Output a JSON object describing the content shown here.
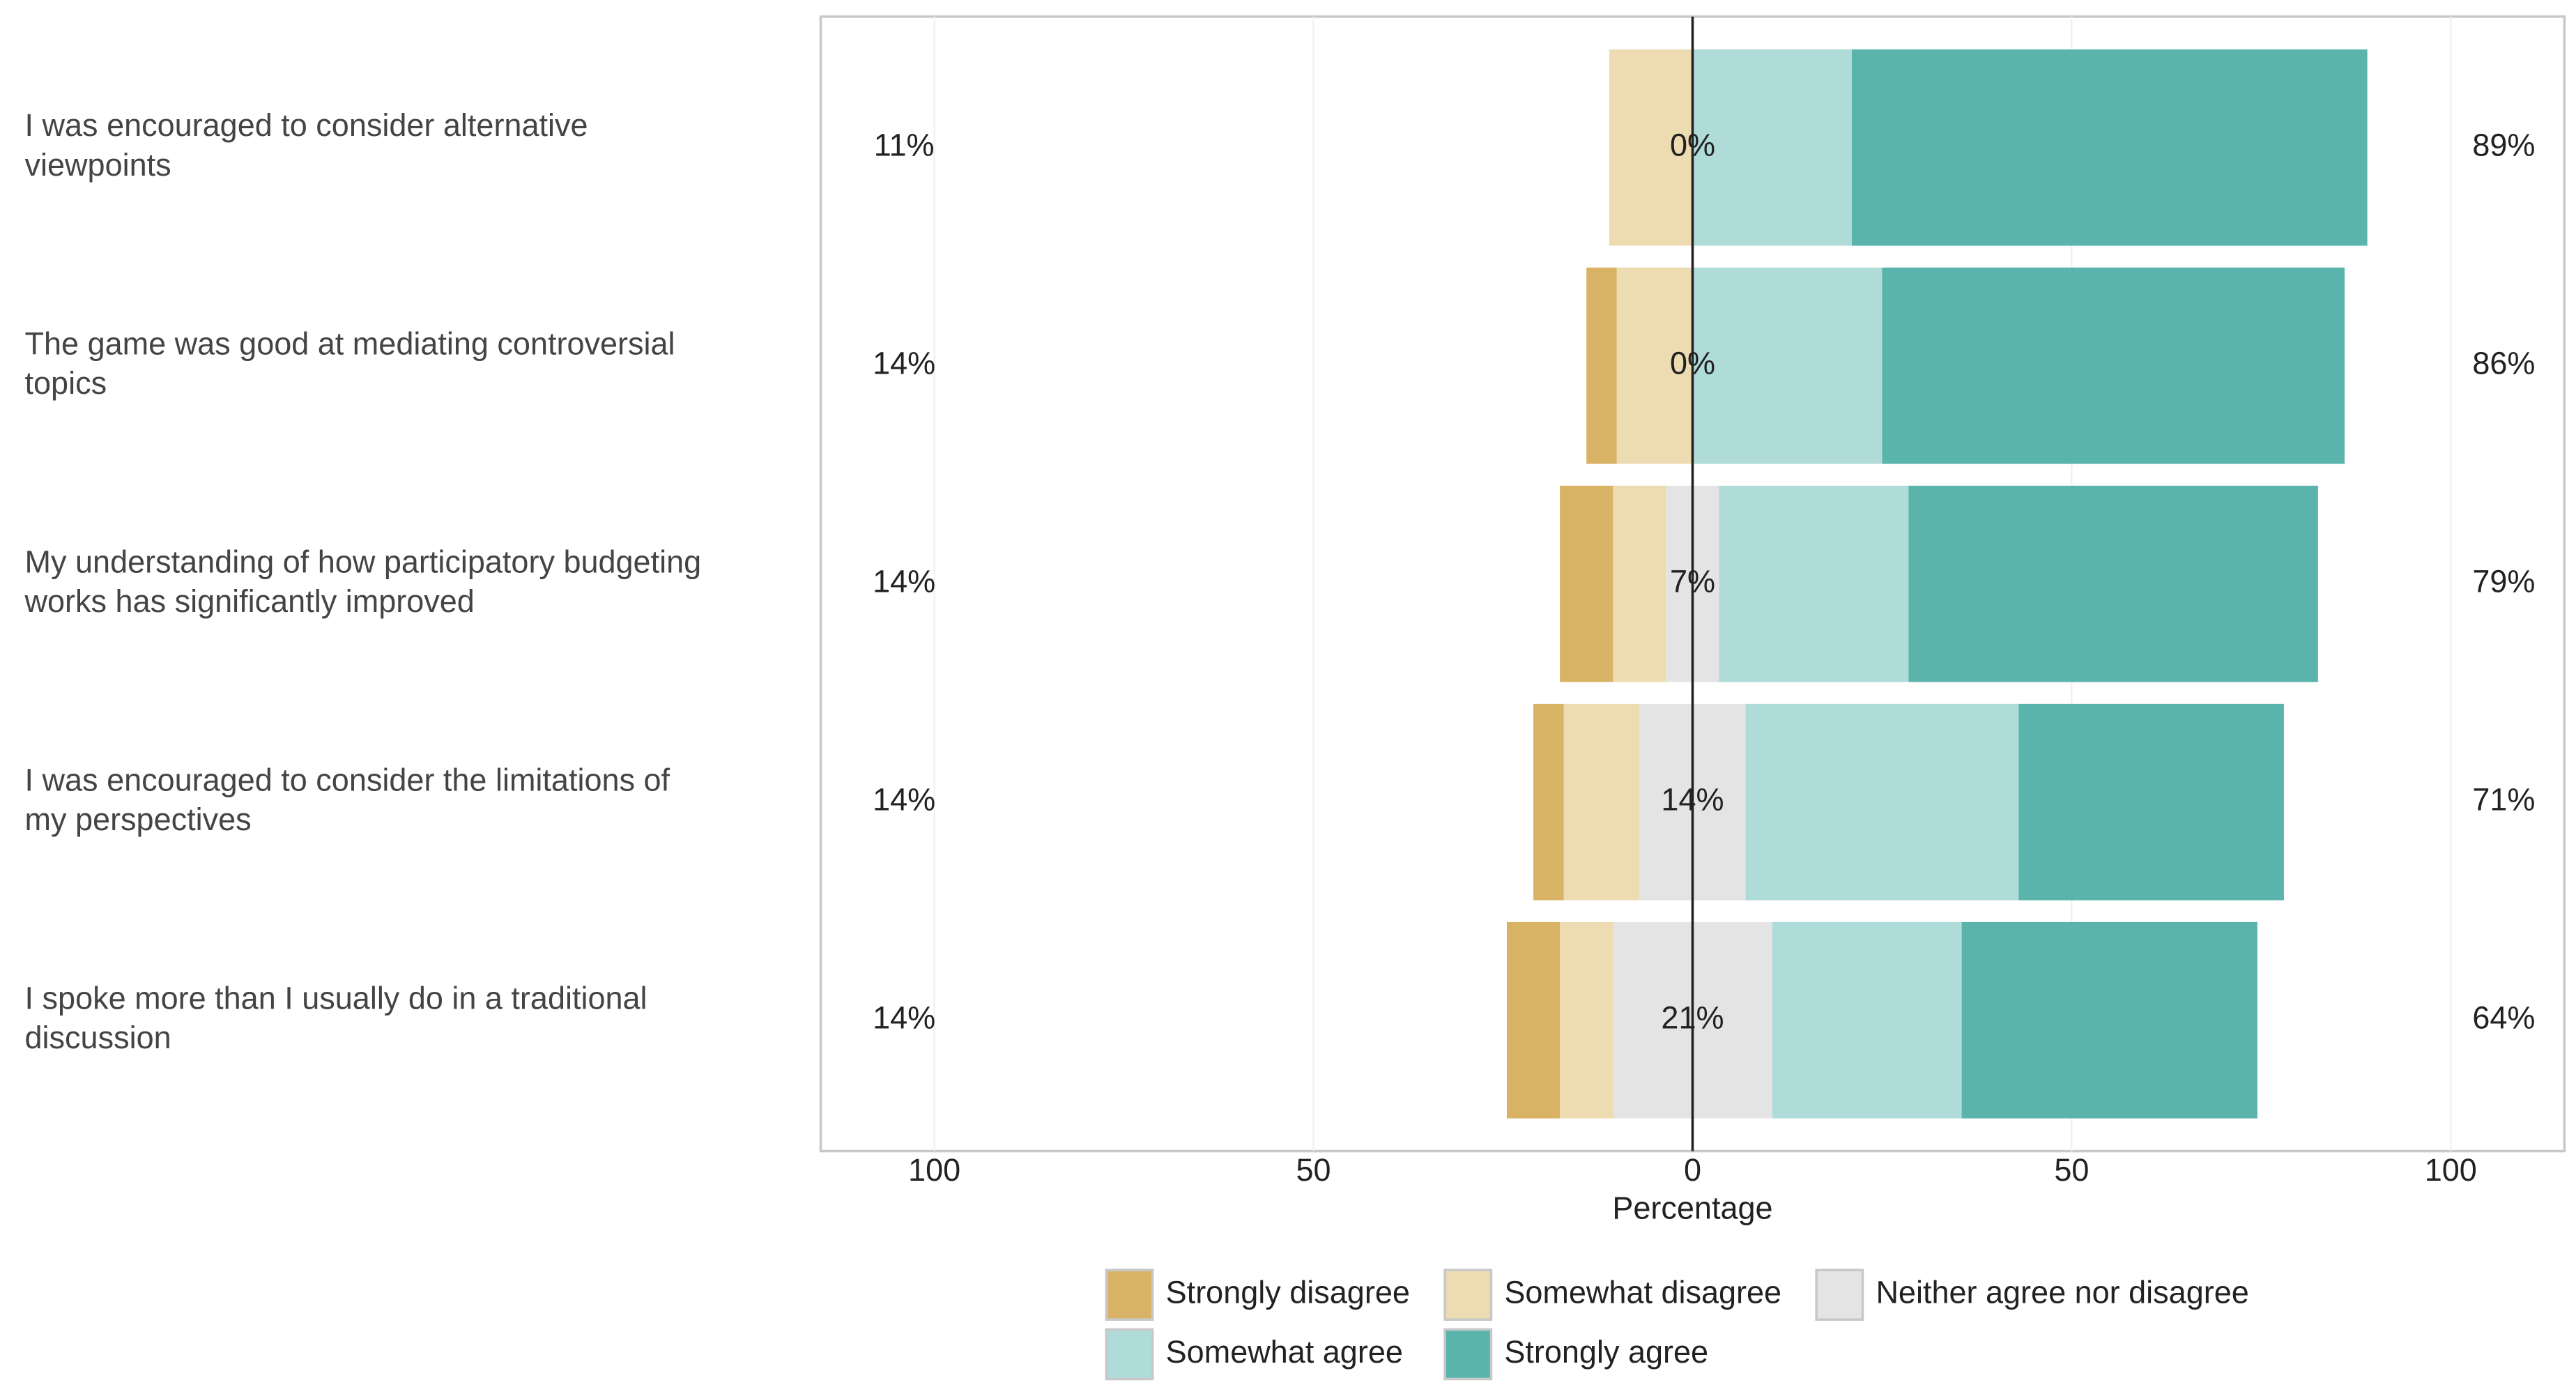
{
  "chart_data": {
    "type": "diverging_bar",
    "x_label": "Percentage",
    "categories": [
      "I was encouraged to consider alternative\nviewpoints",
      "The game was good at mediating controversial\ntopics",
      "My understanding of how participatory budgeting\nworks has significantly improved",
      "I was encouraged to consider the limitations of\nmy perspectives",
      "I spoke more than I usually do in a traditional\ndiscussion"
    ],
    "series": [
      {
        "name": "Strongly disagree",
        "color": "#d8b365",
        "values": [
          0,
          4,
          7,
          4,
          7
        ]
      },
      {
        "name": "Somewhat disagree",
        "color": "#eddbb2",
        "values": [
          11,
          10,
          7,
          10,
          7
        ]
      },
      {
        "name": "Neither agree nor disagree",
        "color": "#e4e4e4",
        "values": [
          0,
          0,
          7,
          14,
          21
        ]
      },
      {
        "name": "Somewhat agree",
        "color": "#afdcd8",
        "values": [
          21,
          25,
          25,
          36,
          25
        ]
      },
      {
        "name": "Strongly agree",
        "color": "#5ab4ac",
        "values": [
          68,
          61,
          54,
          35,
          39
        ]
      }
    ],
    "disagree_labels": [
      "11%",
      "14%",
      "14%",
      "14%",
      "14%"
    ],
    "neutral_labels": [
      "0%",
      "0%",
      "7%",
      "14%",
      "21%"
    ],
    "agree_labels": [
      "89%",
      "86%",
      "79%",
      "71%",
      "64%"
    ],
    "xlim": [
      -115,
      115
    ],
    "xticks": [
      {
        "value": -100,
        "label": "100"
      },
      {
        "value": -50,
        "label": "50"
      },
      0,
      50,
      100
    ],
    "legend": "bottom"
  }
}
